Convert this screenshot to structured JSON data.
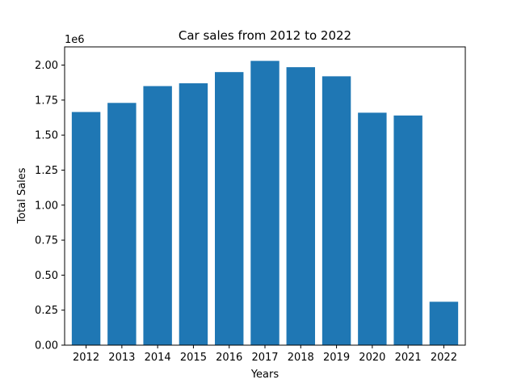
{
  "chart_data": {
    "type": "bar",
    "title": "Car sales from 2012 to 2022",
    "xlabel": "Years",
    "ylabel": "Total Sales",
    "y_offset_label": "1e6",
    "y_scale": 1000000,
    "categories": [
      "2012",
      "2013",
      "2014",
      "2015",
      "2016",
      "2017",
      "2018",
      "2019",
      "2020",
      "2021",
      "2022"
    ],
    "values": [
      1665000,
      1730000,
      1850000,
      1870000,
      1950000,
      2030000,
      1985000,
      1920000,
      1660000,
      1640000,
      310000
    ],
    "ylim": [
      0,
      2130000
    ],
    "yticks": [
      0,
      250000,
      500000,
      750000,
      1000000,
      1250000,
      1500000,
      1750000,
      2000000
    ],
    "ytick_labels": [
      "0.00",
      "0.25",
      "0.50",
      "0.75",
      "1.00",
      "1.25",
      "1.50",
      "1.75",
      "2.00"
    ],
    "bar_color": "#1f77b4",
    "grid": false,
    "legend": "none"
  }
}
